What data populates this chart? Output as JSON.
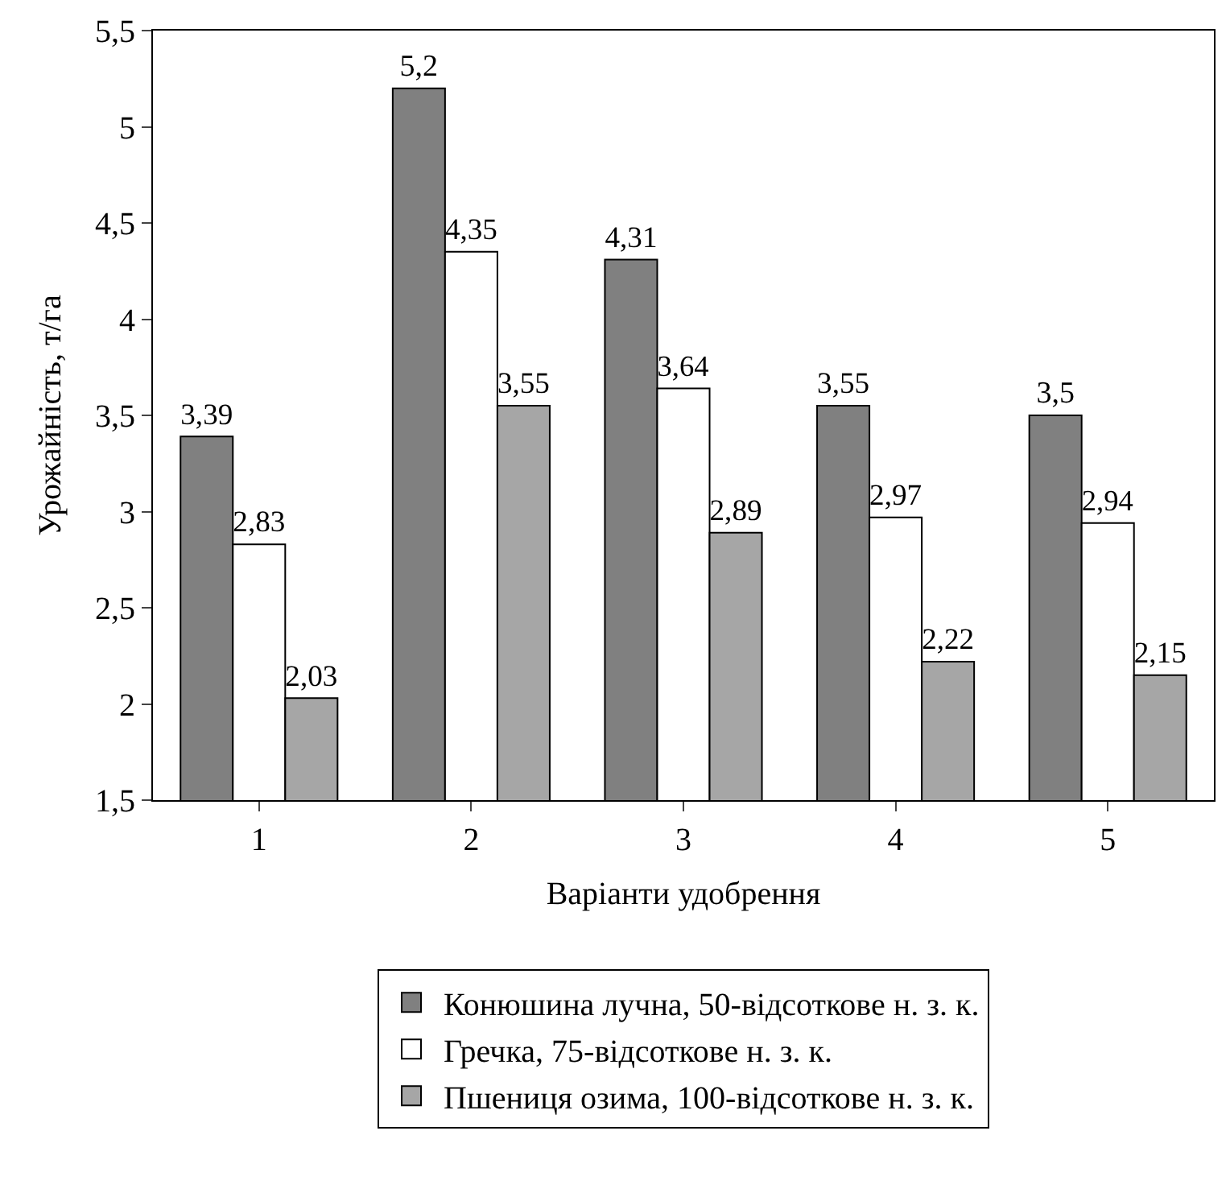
{
  "chart_data": {
    "type": "bar",
    "xlabel": "Варіанти удобрення",
    "ylabel": "Урожайність, т/га",
    "categories": [
      "1",
      "2",
      "3",
      "4",
      "5"
    ],
    "series": [
      {
        "name": "Конюшина лучна, 50-відсоткове н. з. к.",
        "color": "#808080",
        "values": [
          3.39,
          5.2,
          4.31,
          3.55,
          3.5
        ],
        "value_labels": [
          "3,39",
          "5,2",
          "4,31",
          "3,55",
          "3,5"
        ]
      },
      {
        "name": "Гречка, 75-відсоткове н. з. к.",
        "color": "#ffffff",
        "values": [
          2.83,
          4.35,
          3.64,
          2.97,
          2.94
        ],
        "value_labels": [
          "2,83",
          "4,35",
          "3,64",
          "2,97",
          "2,94"
        ]
      },
      {
        "name": "Пшениця озима, 100-відсоткове н. з. к.",
        "color": "#a6a6a6",
        "values": [
          2.03,
          3.55,
          2.89,
          2.22,
          2.15
        ],
        "value_labels": [
          "2,03",
          "3,55",
          "2,89",
          "2,22",
          "2,15"
        ]
      }
    ],
    "ylim": [
      1.5,
      5.5
    ],
    "yticks": [
      {
        "value": 1.5,
        "label": "1,5"
      },
      2,
      {
        "value": 2.5,
        "label": "2,5"
      },
      3,
      {
        "value": 3.5,
        "label": "3,5"
      },
      4,
      {
        "value": 4.5,
        "label": "4,5"
      },
      5,
      {
        "value": 5.5,
        "label": "5,5"
      }
    ],
    "grid": false,
    "legend": "bottom"
  }
}
